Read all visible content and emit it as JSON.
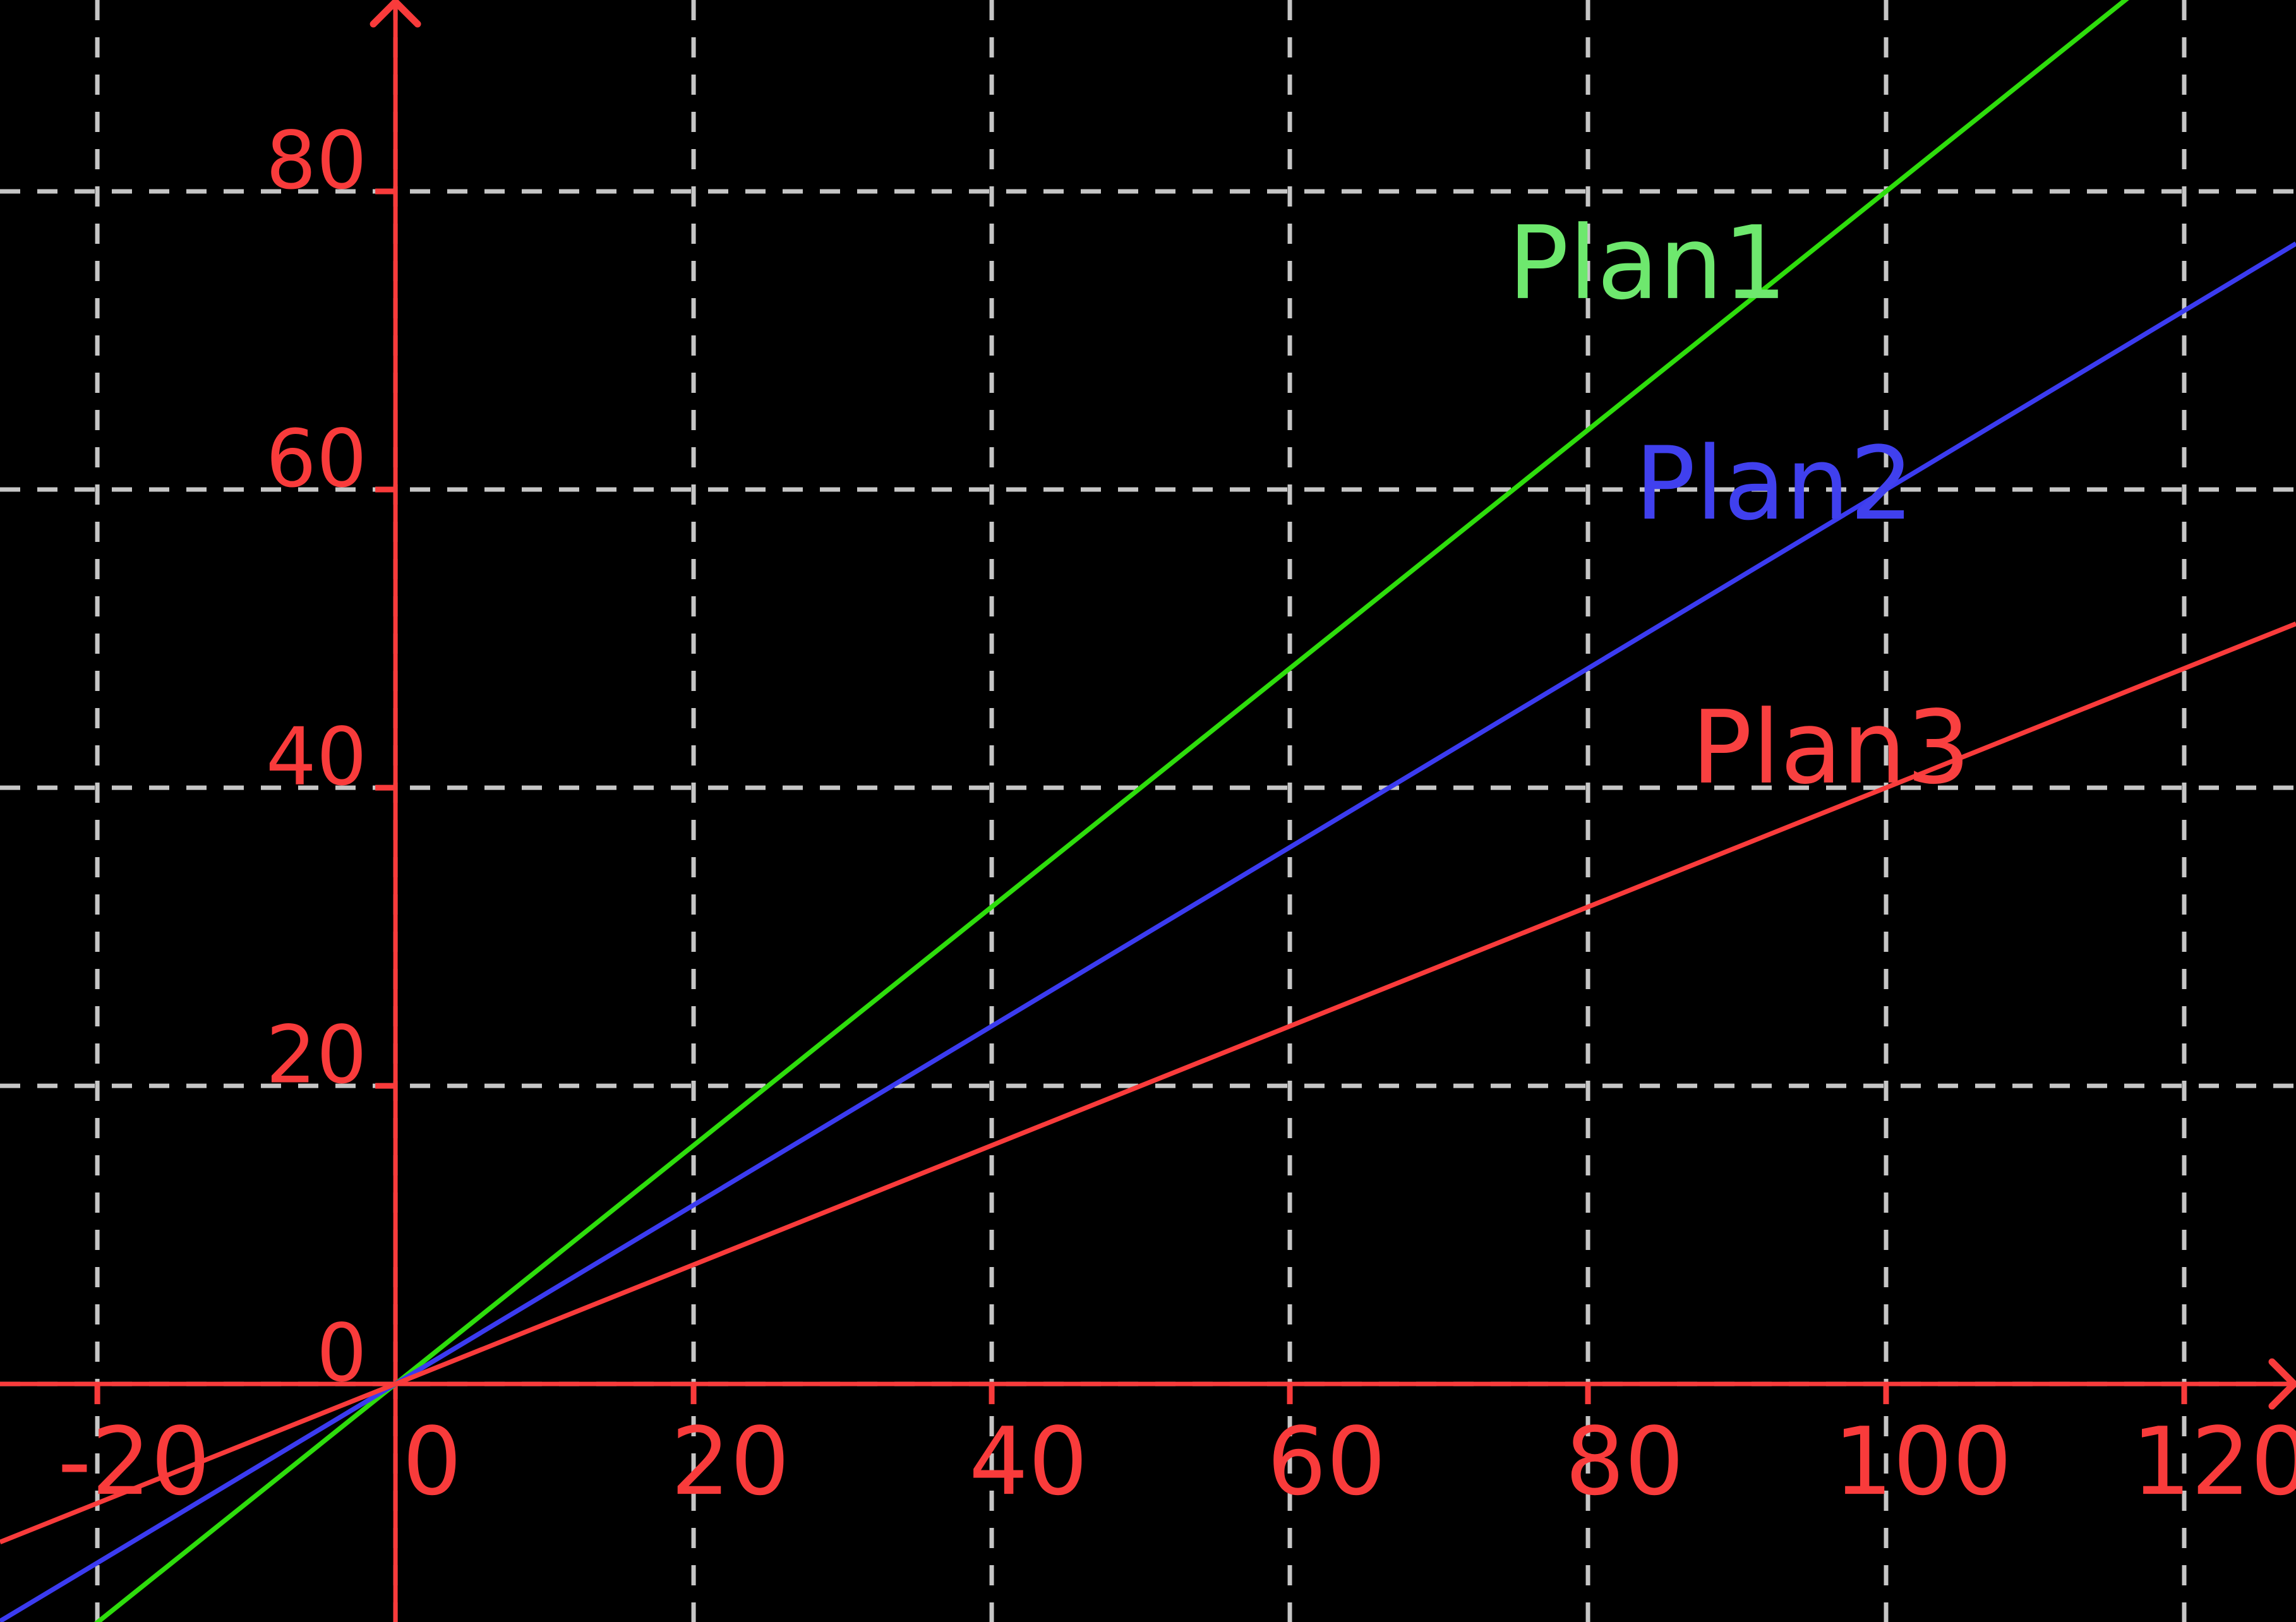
{
  "chart_data": {
    "type": "line",
    "title": "",
    "xlabel": "",
    "ylabel": "",
    "background": "#000000",
    "grid": true,
    "grid_color": "#c6c6c6",
    "axis_color": "#f93b3b",
    "tick_label_color": "#f93b3b",
    "x_range": [
      -26.53,
      127.5
    ],
    "y_range": [
      -15.97,
      92.84
    ],
    "x_ticks": [
      -20,
      0,
      20,
      40,
      60,
      80,
      100,
      120
    ],
    "x_tick_labels": [
      "-20",
      "0",
      "20",
      "40",
      "60",
      "80",
      "100",
      "120"
    ],
    "y_ticks": [
      0,
      20,
      40,
      60,
      80
    ],
    "y_tick_labels": [
      "0",
      "20",
      "40",
      "60",
      "80"
    ],
    "series": [
      {
        "name": "Plan1",
        "slope": 0.8,
        "intercept": 0,
        "color": "#2edd0c",
        "label_color": "#6ee86e",
        "label_at": {
          "x": 84.0,
          "y": 75.2
        },
        "key_points": [
          [
            0,
            0
          ],
          [
            100,
            80
          ]
        ]
      },
      {
        "name": "Plan2",
        "slope": 0.6,
        "intercept": 0,
        "color": "#3b3bf0",
        "label_color": "#4040ee",
        "label_at": {
          "x": 92.5,
          "y": 60.4
        },
        "key_points": [
          [
            0,
            0
          ],
          [
            100,
            60
          ]
        ]
      },
      {
        "name": "Plan3",
        "slope": 0.4,
        "intercept": 0,
        "color": "#f93b3b",
        "label_color": "#f94040",
        "label_at": {
          "x": 96.3,
          "y": 42.7
        },
        "key_points": [
          [
            0,
            0
          ],
          [
            100,
            40
          ]
        ]
      }
    ]
  }
}
